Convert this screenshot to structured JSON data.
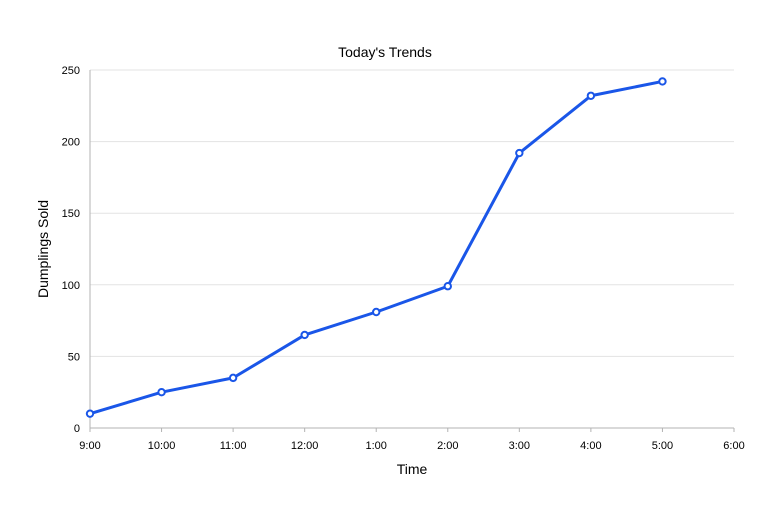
{
  "chart_data": {
    "type": "line",
    "title": "Today's Trends",
    "xlabel": "Time",
    "ylabel": "Dumplings Sold",
    "categories": [
      "9:00",
      "10:00",
      "11:00",
      "12:00",
      "1:00",
      "2:00",
      "3:00",
      "4:00",
      "5:00",
      "6:00"
    ],
    "series": [
      {
        "values": [
          10,
          25,
          35,
          65,
          81,
          99,
          192,
          232,
          242,
          null
        ],
        "color": "#1a56e8"
      }
    ],
    "ylim": [
      0,
      250
    ],
    "yticks": [
      "0",
      "50",
      "100",
      "150",
      "200",
      "250"
    ],
    "grid": true,
    "legend": "none",
    "markers": "hollow-circle"
  }
}
